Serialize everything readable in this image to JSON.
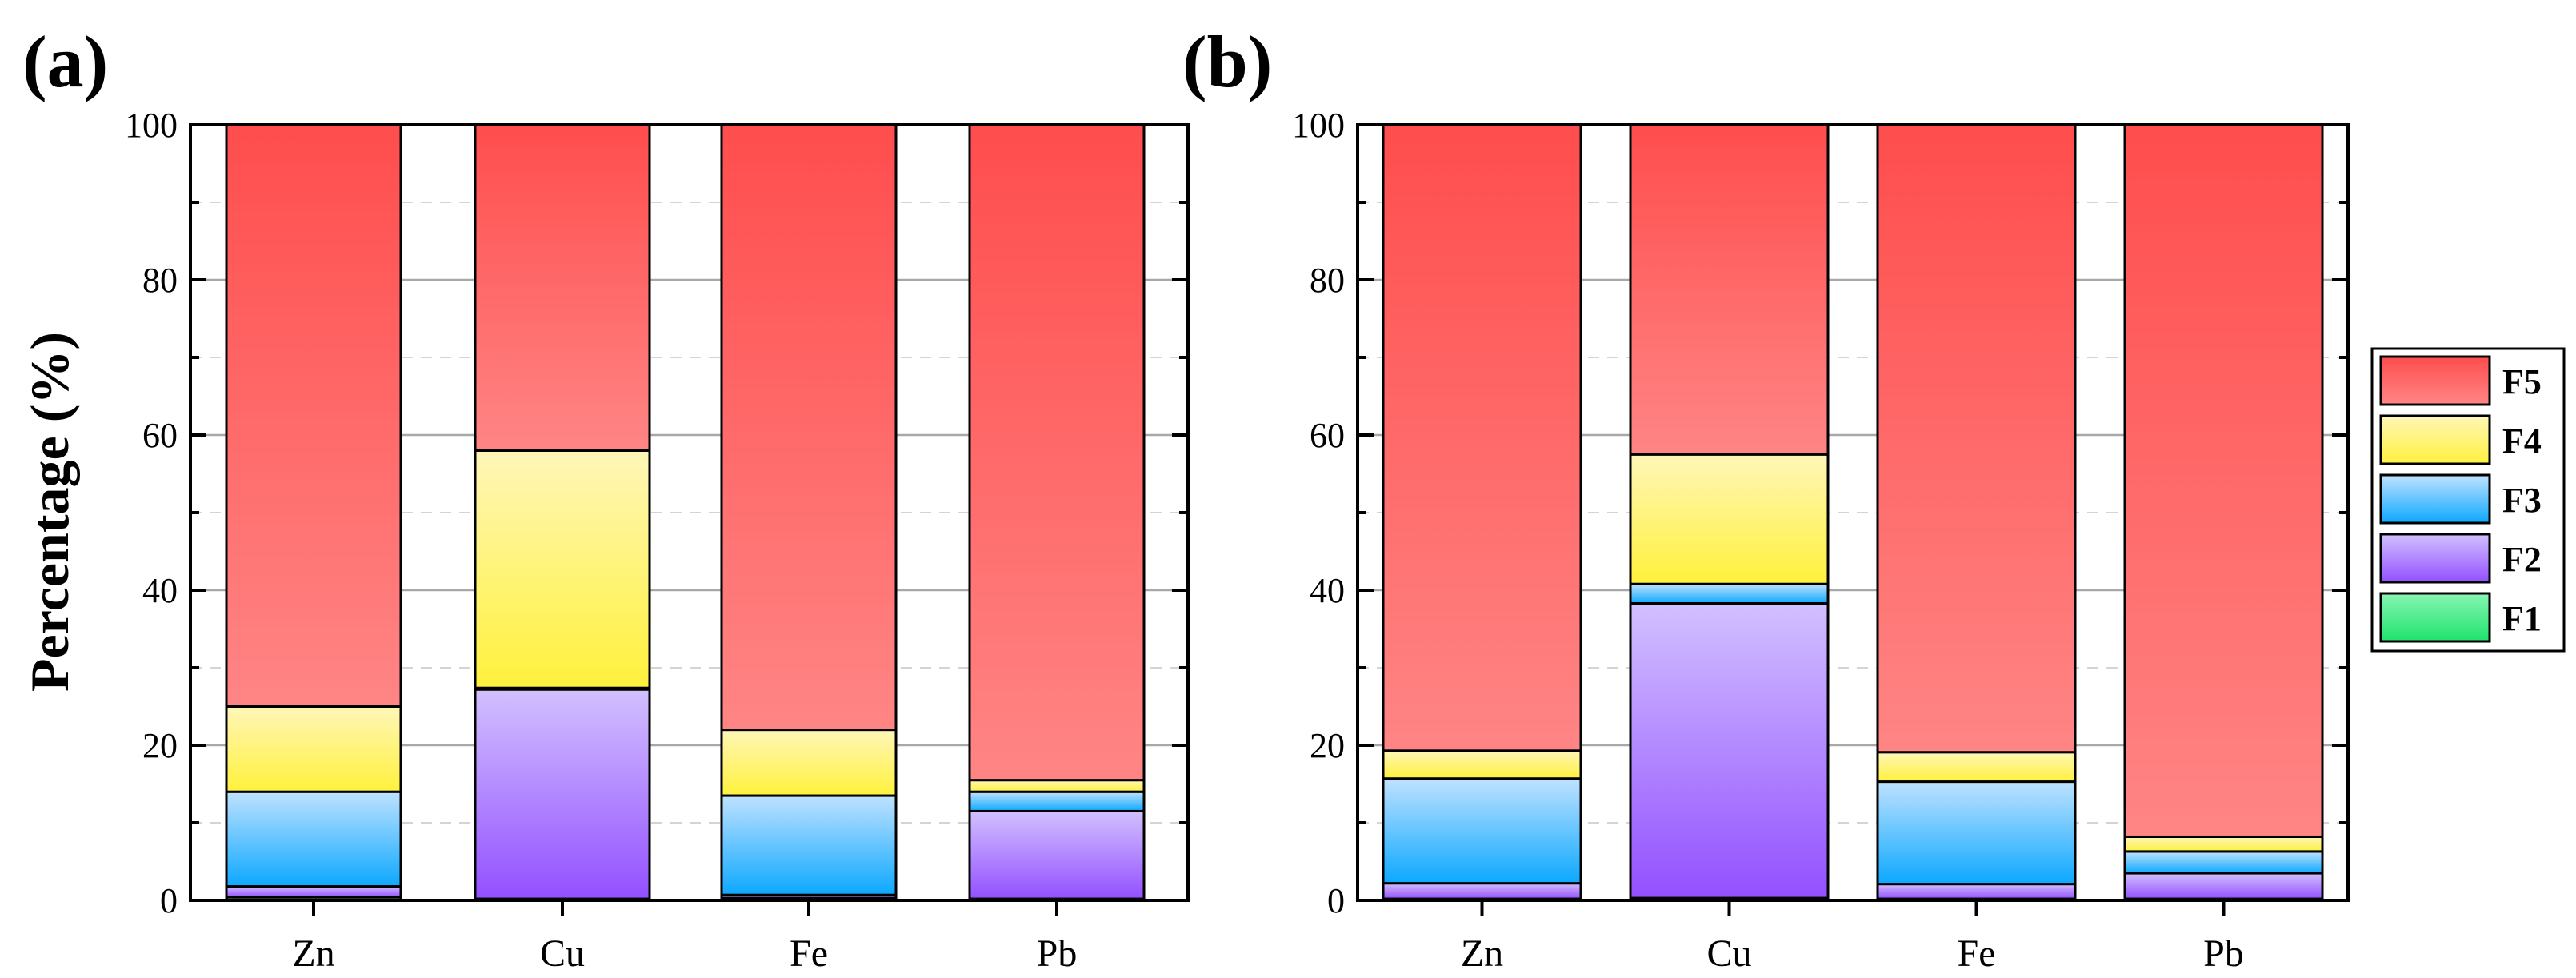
{
  "chart_data": [
    {
      "type": "bar",
      "stacked": true,
      "panel_label": "(a)",
      "title": "",
      "xlabel": "",
      "ylabel": "Percentage (%)",
      "ylim": [
        0,
        100
      ],
      "yticks": [
        "0",
        "20",
        "40",
        "60",
        "80",
        "100"
      ],
      "grid": true,
      "categories": [
        "Zn",
        "Cu",
        "Fe",
        "Pb"
      ],
      "series": [
        {
          "name": "F1",
          "values": [
            0.4,
            0.2,
            0.3,
            0.2
          ]
        },
        {
          "name": "F2",
          "values": [
            1.4,
            27.0,
            0.4,
            11.3
          ]
        },
        {
          "name": "F3",
          "values": [
            12.2,
            0.2,
            12.8,
            2.5
          ]
        },
        {
          "name": "F4",
          "values": [
            11.0,
            30.6,
            8.5,
            1.5
          ]
        },
        {
          "name": "F5",
          "values": [
            75.0,
            42.0,
            78.0,
            84.5
          ]
        }
      ]
    },
    {
      "type": "bar",
      "stacked": true,
      "panel_label": "(b)",
      "title": "",
      "xlabel": "",
      "ylabel": "",
      "ylim": [
        0,
        100
      ],
      "yticks": [
        "0",
        "20",
        "40",
        "60",
        "80",
        "100"
      ],
      "grid": true,
      "categories": [
        "Zn",
        "Cu",
        "Fe",
        "Pb"
      ],
      "series": [
        {
          "name": "F1",
          "values": [
            0.2,
            0.3,
            0.2,
            0.2
          ]
        },
        {
          "name": "F2",
          "values": [
            2.0,
            38.0,
            1.9,
            3.3
          ]
        },
        {
          "name": "F3",
          "values": [
            13.5,
            2.5,
            13.2,
            2.8
          ]
        },
        {
          "name": "F4",
          "values": [
            3.6,
            16.7,
            3.8,
            1.9
          ]
        },
        {
          "name": "F5",
          "values": [
            80.7,
            42.5,
            80.9,
            91.8
          ]
        }
      ]
    }
  ],
  "legend": {
    "placement": "right",
    "entries": [
      "F5",
      "F4",
      "F3",
      "F2",
      "F1"
    ]
  },
  "colors": {
    "F1": {
      "top": "#88f5b4",
      "bottom": "#1ee36c"
    },
    "F2": {
      "top": "#d2c0ff",
      "bottom": "#9350ff"
    },
    "F3": {
      "top": "#bfe2ff",
      "bottom": "#0da8ff"
    },
    "F4": {
      "top": "#fff6b8",
      "bottom": "#fff13c"
    },
    "F5": {
      "top": "#ff4d4d",
      "bottom": "#ff8585"
    }
  }
}
